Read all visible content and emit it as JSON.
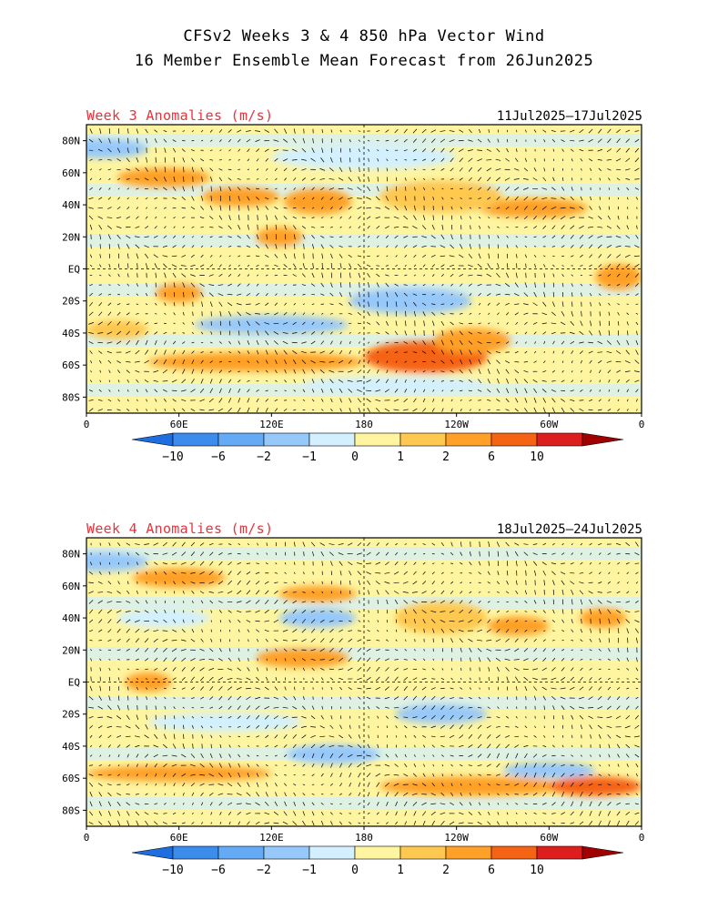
{
  "title_line1": "CFSv2 Weeks 3 & 4 850 hPa Vector Wind",
  "title_line2": "16 Member Ensemble Mean Forecast from 26Jun2025",
  "panels": [
    {
      "label": "Week 3 Anomalies (m/s)",
      "dates": "11Jul2025—17Jul2025",
      "blobs": [
        {
          "lon": 50,
          "lat": 57,
          "rlon": 30,
          "rlat": 6,
          "v": 2
        },
        {
          "lon": 100,
          "lat": 45,
          "rlon": 25,
          "rlat": 6,
          "v": 2
        },
        {
          "lon": 150,
          "lat": 42,
          "rlon": 22,
          "rlat": 8,
          "v": 2
        },
        {
          "lon": 290,
          "lat": 38,
          "rlon": 35,
          "rlat": 6,
          "v": 2
        },
        {
          "lon": 10,
          "lat": 75,
          "rlon": 30,
          "rlat": 6,
          "v": -2
        },
        {
          "lon": 180,
          "lat": 70,
          "rlon": 60,
          "rlat": 8,
          "v": -1
        },
        {
          "lon": 230,
          "lat": 45,
          "rlon": 40,
          "rlat": 10,
          "v": 1
        },
        {
          "lon": 125,
          "lat": 20,
          "rlon": 15,
          "rlat": 6,
          "v": 2
        },
        {
          "lon": 60,
          "lat": -15,
          "rlon": 15,
          "rlat": 6,
          "v": 2
        },
        {
          "lon": 345,
          "lat": -5,
          "rlon": 15,
          "rlat": 8,
          "v": 2
        },
        {
          "lon": 210,
          "lat": -20,
          "rlon": 40,
          "rlat": 8,
          "v": -2
        },
        {
          "lon": 120,
          "lat": -35,
          "rlon": 50,
          "rlat": 6,
          "v": -2
        },
        {
          "lon": 110,
          "lat": -58,
          "rlon": 70,
          "rlat": 6,
          "v": 2
        },
        {
          "lon": 220,
          "lat": -55,
          "rlon": 40,
          "rlat": 10,
          "v": 6
        },
        {
          "lon": 250,
          "lat": -45,
          "rlon": 25,
          "rlat": 8,
          "v": 2
        },
        {
          "lon": 200,
          "lat": -72,
          "rlon": 60,
          "rlat": 5,
          "v": -1
        },
        {
          "lon": 20,
          "lat": -38,
          "rlon": 20,
          "rlat": 6,
          "v": 1
        }
      ]
    },
    {
      "label": "Week 4 Anomalies (m/s)",
      "dates": "18Jul2025—24Jul2025",
      "blobs": [
        {
          "lon": 60,
          "lat": 65,
          "rlon": 30,
          "rlat": 6,
          "v": 2
        },
        {
          "lon": 150,
          "lat": 55,
          "rlon": 25,
          "rlat": 5,
          "v": 2
        },
        {
          "lon": 140,
          "lat": 15,
          "rlon": 30,
          "rlat": 6,
          "v": 2
        },
        {
          "lon": 40,
          "lat": 0,
          "rlon": 15,
          "rlat": 6,
          "v": 2
        },
        {
          "lon": 50,
          "lat": 40,
          "rlon": 30,
          "rlat": 6,
          "v": -1
        },
        {
          "lon": 150,
          "lat": 40,
          "rlon": 25,
          "rlat": 6,
          "v": -2
        },
        {
          "lon": 10,
          "lat": 75,
          "rlon": 30,
          "rlat": 6,
          "v": -2
        },
        {
          "lon": 230,
          "lat": 40,
          "rlon": 30,
          "rlat": 10,
          "v": 1
        },
        {
          "lon": 280,
          "lat": 35,
          "rlon": 20,
          "rlat": 6,
          "v": 2
        },
        {
          "lon": 335,
          "lat": 40,
          "rlon": 15,
          "rlat": 6,
          "v": 2
        },
        {
          "lon": 230,
          "lat": -20,
          "rlon": 30,
          "rlat": 6,
          "v": -2
        },
        {
          "lon": 90,
          "lat": -25,
          "rlon": 50,
          "rlat": 6,
          "v": -1
        },
        {
          "lon": 60,
          "lat": -57,
          "rlon": 60,
          "rlat": 5,
          "v": 2
        },
        {
          "lon": 250,
          "lat": -65,
          "rlon": 60,
          "rlat": 6,
          "v": 2
        },
        {
          "lon": 330,
          "lat": -65,
          "rlon": 30,
          "rlat": 6,
          "v": 6
        },
        {
          "lon": 160,
          "lat": -45,
          "rlon": 30,
          "rlat": 6,
          "v": -2
        },
        {
          "lon": 300,
          "lat": -55,
          "rlon": 30,
          "rlat": 5,
          "v": -2
        }
      ]
    }
  ],
  "lat_labels": [
    "80N",
    "60N",
    "40N",
    "20N",
    "EQ",
    "20S",
    "40S",
    "60S",
    "80S"
  ],
  "lat_values": [
    80,
    60,
    40,
    20,
    0,
    -20,
    -40,
    -60,
    -80
  ],
  "lon_labels": [
    "0",
    "60E",
    "120E",
    "180",
    "120W",
    "60W",
    "0"
  ],
  "lon_values": [
    0,
    60,
    120,
    180,
    240,
    300,
    360
  ],
  "colorbar": {
    "tick_labels": [
      "-10",
      "-6",
      "-2",
      "-1",
      "0",
      "1",
      "2",
      "6",
      "10"
    ],
    "thresholds": [
      -10,
      -6,
      -2,
      -1,
      0,
      1,
      2,
      6,
      10
    ],
    "colors": [
      "#1e6ee0",
      "#3c8cee",
      "#64aaf5",
      "#96c8fa",
      "#d2f0ff",
      "#fff5a0",
      "#ffc850",
      "#ffa028",
      "#f56414",
      "#dc1e1e",
      "#a00000"
    ]
  },
  "map_extent": {
    "lon": [
      0,
      360
    ],
    "lat": [
      -90,
      90
    ]
  }
}
